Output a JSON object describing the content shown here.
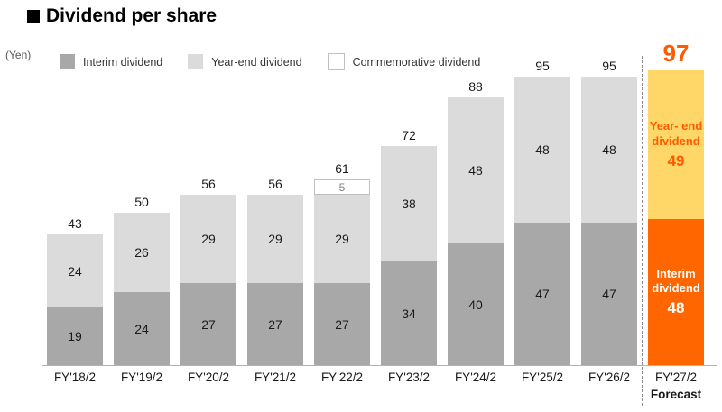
{
  "page": {
    "title": "Dividend per share",
    "unit_label": "(Yen)"
  },
  "legend": {
    "items": [
      {
        "label": "Interim dividend",
        "swatch": "interim"
      },
      {
        "label": "Year-end dividend",
        "swatch": "year_end"
      },
      {
        "label": "Commemorative dividend",
        "swatch": "commemorative"
      }
    ]
  },
  "chart_data": {
    "type": "bar",
    "stacked": true,
    "title": "Dividend per share",
    "ylabel": "(Yen)",
    "ylim": [
      0,
      100
    ],
    "grid": false,
    "legend_position": "top-left",
    "categories": [
      "FY'18/2",
      "FY'19/2",
      "FY'20/2",
      "FY'21/2",
      "FY'22/2",
      "FY'23/2",
      "FY'24/2",
      "FY'25/2",
      "FY'26/2",
      "FY'27/2"
    ],
    "series": [
      {
        "name": "Interim dividend",
        "values": [
          19,
          24,
          27,
          27,
          27,
          34,
          40,
          47,
          47,
          48
        ]
      },
      {
        "name": "Year-end dividend",
        "values": [
          24,
          26,
          29,
          29,
          29,
          38,
          48,
          48,
          48,
          49
        ]
      },
      {
        "name": "Commemorative dividend",
        "values": [
          0,
          0,
          0,
          0,
          5,
          0,
          0,
          0,
          0,
          0
        ]
      }
    ],
    "totals": [
      43,
      50,
      56,
      56,
      61,
      72,
      88,
      95,
      95,
      97
    ],
    "forecast": {
      "category": "FY'27/2",
      "sublabel": "Forecast",
      "total": 97,
      "year_end_label": "Year- end dividend",
      "year_end_value": 49,
      "interim_label": "Interim dividend",
      "interim_value": 48
    },
    "colors": {
      "interim": "#a8a8a8",
      "year_end": "#dbdbdb",
      "commemorative_fill": "#ffffff",
      "commemorative_border": "#c0c0c0",
      "forecast_interim": "#ff6600",
      "forecast_year_end": "#fed768",
      "orange_text": "#ff5a00",
      "axis": "#8c8c8c"
    }
  }
}
